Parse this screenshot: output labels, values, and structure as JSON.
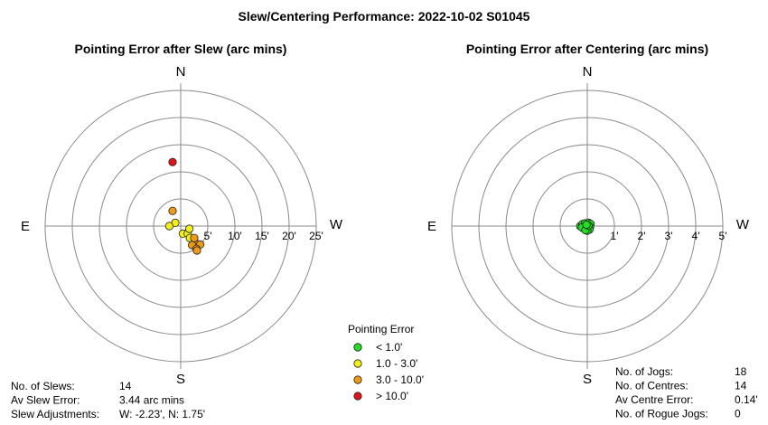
{
  "chart_data": {
    "title": "Slew/Centering Performance: 2022-10-02 S01045",
    "legend": {
      "title": "Pointing Error",
      "items": [
        {
          "label": "< 1.0'",
          "color": "#22dd22"
        },
        {
          "label": "1.0 - 3.0'",
          "color": "#f2ee1a"
        },
        {
          "label": "3.0 - 10.0'",
          "color": "#ee9a14"
        },
        {
          "label": "> 10.0'",
          "color": "#dd1414"
        }
      ]
    },
    "charts": [
      {
        "type": "scatter",
        "subtype": "polar",
        "title": "Pointing Error after Slew (arc mins)",
        "directions": {
          "n": "N",
          "s": "S",
          "e": "E",
          "w": "W"
        },
        "ring_labels": [
          "5'",
          "10'",
          "15'",
          "20'",
          "25'"
        ],
        "max_radius": 25,
        "x_axis": "west offset (arc mins)",
        "y_axis": "north offset (arc mins)",
        "points": [
          {
            "w": -1.5,
            "n": 11.8,
            "category": "> 10.0'"
          },
          {
            "w": -1.5,
            "n": 2.8,
            "category": "3.0 - 10.0'"
          },
          {
            "w": -1.0,
            "n": 0.6,
            "category": "1.0 - 3.0'"
          },
          {
            "w": -2.1,
            "n": 0.0,
            "category": "1.0 - 3.0'"
          },
          {
            "w": 0.4,
            "n": -1.4,
            "category": "1.0 - 3.0'"
          },
          {
            "w": 1.3,
            "n": -1.4,
            "category": "1.0 - 3.0'"
          },
          {
            "w": 1.6,
            "n": -0.5,
            "category": "1.0 - 3.0'"
          },
          {
            "w": 1.7,
            "n": -2.2,
            "category": "1.0 - 3.0'"
          },
          {
            "w": 2.6,
            "n": -3.0,
            "category": "3.0 - 10.0'"
          },
          {
            "w": 2.1,
            "n": -3.5,
            "category": "3.0 - 10.0'"
          },
          {
            "w": 3.6,
            "n": -3.4,
            "category": "3.0 - 10.0'"
          },
          {
            "w": 2.9,
            "n": -4.2,
            "category": "3.0 - 10.0'"
          },
          {
            "w": 3.0,
            "n": -4.5,
            "category": "3.0 - 10.0'"
          },
          {
            "w": 2.5,
            "n": -2.2,
            "category": "3.0 - 10.0'"
          }
        ]
      },
      {
        "type": "scatter",
        "subtype": "polar",
        "title": "Pointing Error after Centering (arc mins)",
        "directions": {
          "n": "N",
          "s": "S",
          "e": "E",
          "w": "W"
        },
        "ring_labels": [
          "1'",
          "2'",
          "3'",
          "4'",
          "5'"
        ],
        "max_radius": 5,
        "x_axis": "west offset (arc mins)",
        "y_axis": "north offset (arc mins)",
        "points": [
          {
            "w": -0.26,
            "n": 0.0,
            "category": "< 1.0'"
          },
          {
            "w": -0.18,
            "n": 0.07,
            "category": "< 1.0'"
          },
          {
            "w": -0.08,
            "n": 0.1,
            "category": "< 1.0'"
          },
          {
            "w": 0.05,
            "n": 0.12,
            "category": "< 1.0'"
          },
          {
            "w": 0.12,
            "n": 0.08,
            "category": "< 1.0'"
          },
          {
            "w": 0.1,
            "n": -0.04,
            "category": "< 1.0'"
          },
          {
            "w": 0.0,
            "n": -0.03,
            "category": "< 1.0'"
          },
          {
            "w": -0.1,
            "n": -0.02,
            "category": "< 1.0'"
          },
          {
            "w": -0.2,
            "n": -0.05,
            "category": "< 1.0'"
          },
          {
            "w": 0.08,
            "n": -0.13,
            "category": "< 1.0'"
          },
          {
            "w": 0.0,
            "n": -0.17,
            "category": "< 1.0'"
          },
          {
            "w": -0.07,
            "n": -0.15,
            "category": "< 1.0'"
          },
          {
            "w": 0.04,
            "n": 0.02,
            "category": "< 1.0'"
          },
          {
            "w": -0.03,
            "n": 0.05,
            "category": "< 1.0'"
          }
        ]
      }
    ],
    "stats": {
      "slew": [
        {
          "label": "No. of Slews:",
          "value": "14"
        },
        {
          "label": "Av Slew Error:",
          "value": "3.44 arc mins"
        },
        {
          "label": "Slew Adjustments:",
          "value": "W: -2.23', N: 1.75'"
        }
      ],
      "centering": [
        {
          "label": "No. of Jogs:",
          "value": "18"
        },
        {
          "label": "No. of Centres:",
          "value": "14"
        },
        {
          "label": "Av Centre Error:",
          "value": "0.14'"
        },
        {
          "label": "No. of Rogue Jogs:",
          "value": "0"
        }
      ]
    }
  }
}
